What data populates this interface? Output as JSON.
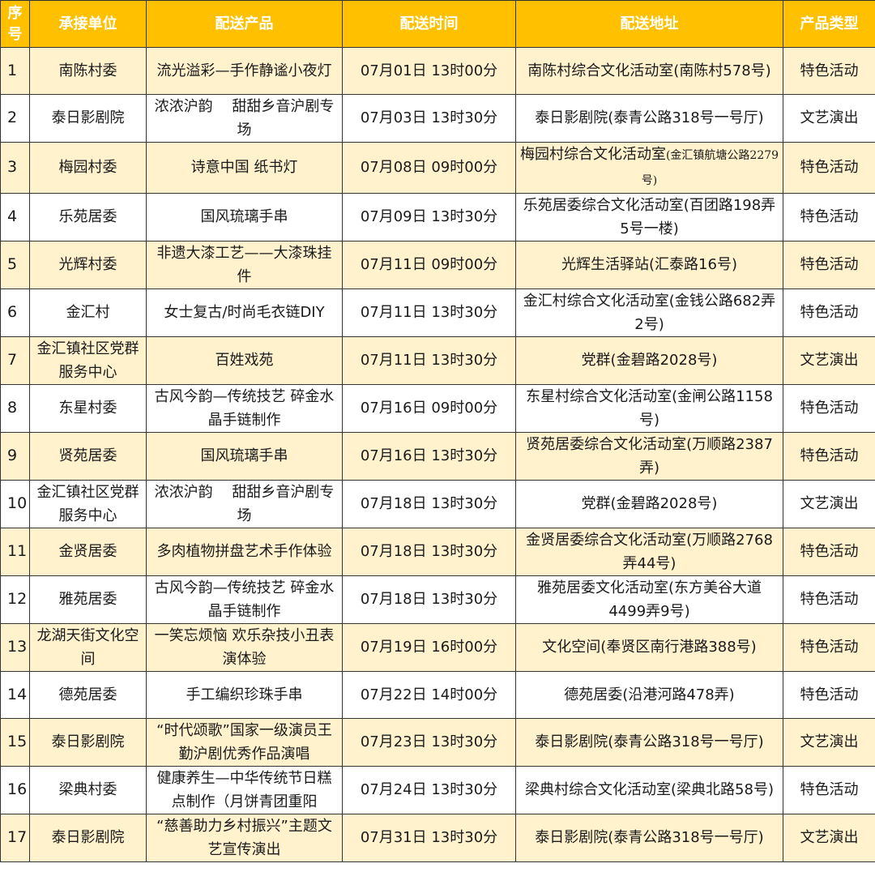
{
  "colors": {
    "header_bg": "#FFC000",
    "header_text": "#FFFFFF",
    "odd_row_bg": "#FFF2CC",
    "even_row_bg": "#FFFFFF",
    "border": "#333333"
  },
  "headers": {
    "seq": "序号",
    "unit": "承接单位",
    "product": "配送产品",
    "time": "配送时间",
    "address": "配送地址",
    "type": "产品类型"
  },
  "rows": [
    {
      "seq": "1",
      "unit": "南陈村委",
      "product": "流光溢彩—手作静谧小夜灯",
      "time": "07月01日 13时00分",
      "address": "南陈村综合文化活动室(南陈村578号)",
      "type": "特色活动"
    },
    {
      "seq": "2",
      "unit": "泰日影剧院",
      "product": "浓浓沪韵　 甜甜乡音沪剧专场",
      "time": "07月03日 13时30分",
      "address": "泰日影剧院(泰青公路318号一号厅)",
      "type": "文艺演出"
    },
    {
      "seq": "3",
      "unit": "梅园村委",
      "product": "诗意中国 纸书灯",
      "time": "07月08日 09时00分",
      "address": "梅园村综合文化活动室",
      "address_small": "(金汇镇航塘公路2279号)",
      "type": "特色活动"
    },
    {
      "seq": "4",
      "unit": "乐苑居委",
      "product": "国风琉璃手串",
      "time": "07月09日 13时30分",
      "address": "乐苑居委综合文化活动室(百团路198弄5号一楼)",
      "type": "特色活动"
    },
    {
      "seq": "5",
      "unit": "光辉村委",
      "product": "非遗大漆工艺——大漆珠挂件",
      "time": "07月11日 09时00分",
      "address": "光辉生活驿站(汇泰路16号)",
      "type": "特色活动"
    },
    {
      "seq": "6",
      "unit": "金汇村",
      "product": "女士复古/时尚毛衣链DIY",
      "time": "07月11日 13时30分",
      "address": "金汇村综合文化活动室(金钱公路682弄2号)",
      "type": "特色活动"
    },
    {
      "seq": "7",
      "unit": "金汇镇社区党群服务中心",
      "product": "百姓戏苑",
      "time": "07月11日 13时30分",
      "address": "党群(金碧路2028号)",
      "type": "文艺演出"
    },
    {
      "seq": "8",
      "unit": "东星村委",
      "product": "古风今韵—传统技艺 碎金水晶手链制作",
      "time": "07月16日 09时00分",
      "address": "东星村综合文化活动室(金闸公路1158号)",
      "type": "特色活动"
    },
    {
      "seq": "9",
      "unit": "贤苑居委",
      "product": "国风琉璃手串",
      "time": "07月16日 13时30分",
      "address": "贤苑居委综合文化活动室(万顺路2387弄)",
      "type": "特色活动"
    },
    {
      "seq": "10",
      "unit": "金汇镇社区党群服务中心",
      "product": "浓浓沪韵　 甜甜乡音沪剧专场",
      "time": "07月18日 13时30分",
      "address": "党群(金碧路2028号)",
      "type": "文艺演出"
    },
    {
      "seq": "11",
      "unit": "金贤居委",
      "product": "多肉植物拼盘艺术手作体验",
      "time": "07月18日 13时30分",
      "address": "金贤居委综合文化活动室(万顺路2768弄44号)",
      "type": "特色活动"
    },
    {
      "seq": "12",
      "unit": "雅苑居委",
      "product": "古风今韵—传统技艺 碎金水晶手链制作",
      "time": "07月18日 13时30分",
      "address": "雅苑居委文化活动室(东方美谷大道4499弄9号)",
      "type": "特色活动"
    },
    {
      "seq": "13",
      "unit": "龙湖天街文化空间",
      "product": "一笑忘烦恼 欢乐杂技小丑表演体验",
      "time": "07月19日 16时00分",
      "address": "文化空间(奉贤区南行港路388号)",
      "type": "特色活动"
    },
    {
      "seq": "14",
      "unit": "德苑居委",
      "product": "手工编织珍珠手串",
      "time": "07月22日 14时00分",
      "address": "德苑居委(沿港河路478弄)",
      "type": "特色活动"
    },
    {
      "seq": "15",
      "unit": "泰日影剧院",
      "product": "“时代颂歌”国家一级演员王勤沪剧优秀作品演唱",
      "time": "07月23日 13时30分",
      "address": "泰日影剧院(泰青公路318号一号厅)",
      "type": "文艺演出"
    },
    {
      "seq": "16",
      "unit": "梁典村委",
      "product": "健康养生—中华传统节日糕点制作（月饼青团重阳",
      "time": "07月24日 13时30分",
      "address": "梁典村综合文化活动室(梁典北路58号)",
      "type": "特色活动"
    },
    {
      "seq": "17",
      "unit": "泰日影剧院",
      "product": "“慈善助力乡村振兴”主题文艺宣传演出",
      "time": "07月31日 13时30分",
      "address": "泰日影剧院(泰青公路318号一号厅)",
      "type": "文艺演出"
    }
  ]
}
